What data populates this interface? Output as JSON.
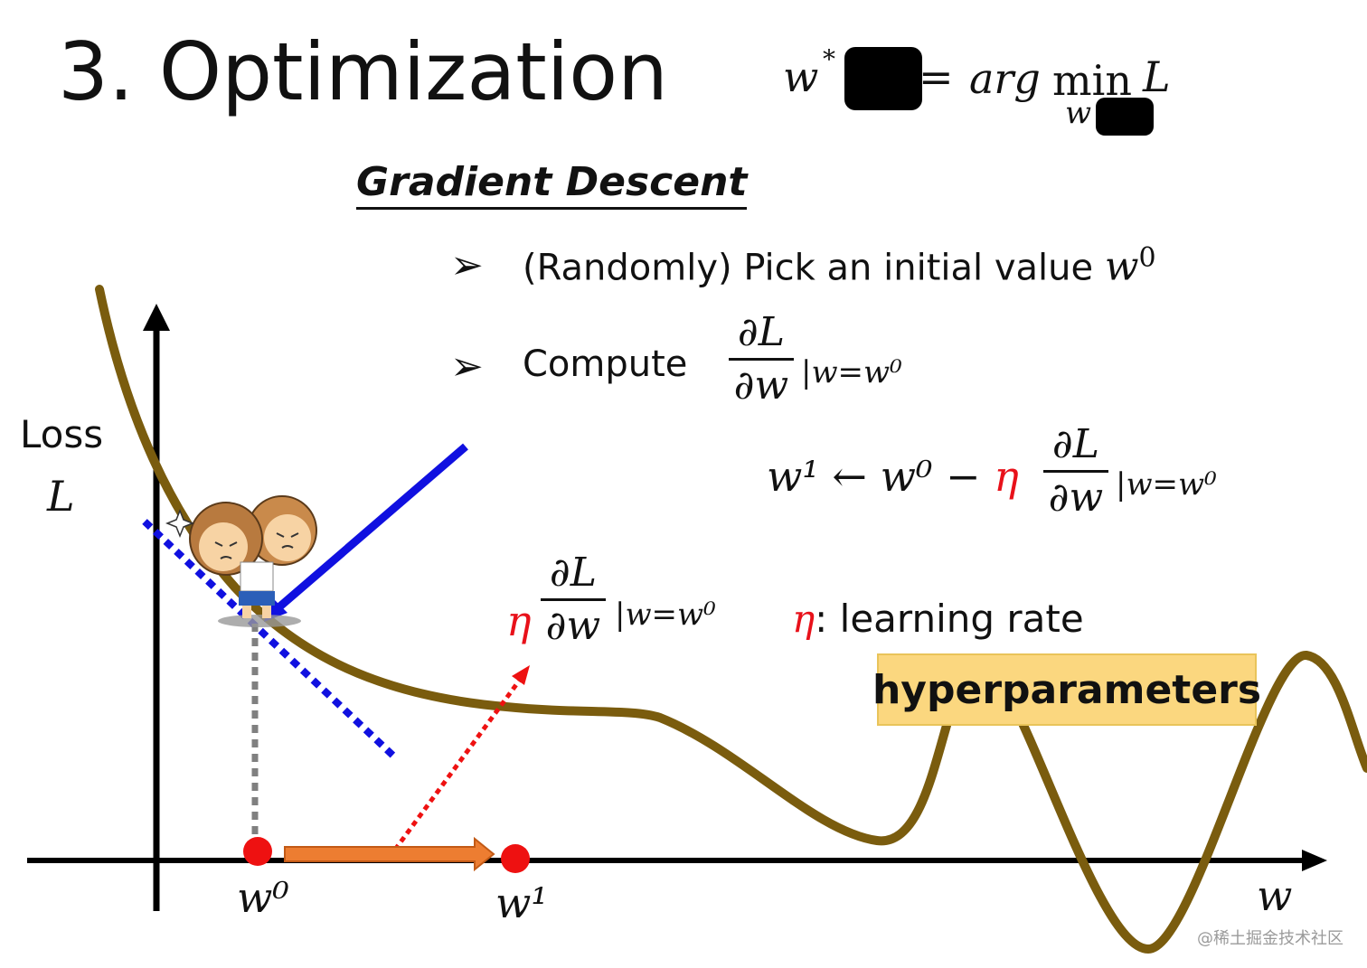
{
  "title": "3. Optimization",
  "formula_top": {
    "lhs": "w",
    "lhs_sup": "*",
    "equals": "=",
    "arg": "arg",
    "min": "min",
    "min_sub": "w",
    "rhs": "L"
  },
  "heading": "Gradient Descent",
  "bullets": {
    "marker": "➢",
    "step1_text": "(Randomly) Pick an initial value ",
    "step1_var": "w",
    "step1_sup": "0",
    "step2_text": "Compute"
  },
  "derivative": {
    "numerator": "∂L",
    "denominator": "∂w",
    "evaluated_at": "|w=w⁰"
  },
  "update_rule": {
    "lhs": "w¹ ← w⁰ − ",
    "eta": "η"
  },
  "step_label": {
    "eta": "η"
  },
  "learning_rate": {
    "eta": "η",
    "text": ": learning rate"
  },
  "hyperparameters": "hyperparameters",
  "axes": {
    "y_label_line1": "Loss",
    "y_label_line2": "L",
    "x_label": "w",
    "w0_label": "w⁰",
    "w1_label": "w¹"
  },
  "watermark": "@稀土掘金技术社区",
  "colors": {
    "curve": "#7a5c0e",
    "tangent": "#1010e0",
    "step_arrow": "#ed7d31",
    "point": "#ee1111",
    "eta": "#e8111a",
    "hyper_box": "#fbd77f"
  }
}
